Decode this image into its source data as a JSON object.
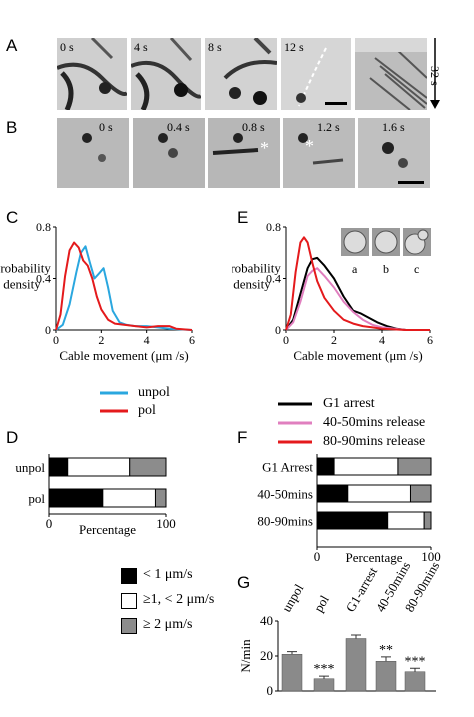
{
  "panels": {
    "A": "A",
    "B": "B",
    "C": "C",
    "D": "D",
    "E": "E",
    "F": "F",
    "G": "G"
  },
  "row_a": {
    "timestamps": [
      "0 s",
      "4 s",
      "8 s",
      "12 s"
    ],
    "time_axis_label": "32 s"
  },
  "row_b": {
    "timestamps": [
      "0 s",
      "0.4 s",
      "0.8 s",
      "1.2 s",
      "1.6 s"
    ]
  },
  "panel_c": {
    "legend": [
      "unpol",
      "pol"
    ]
  },
  "panel_e": {
    "legend": [
      "G1 arrest",
      "40-50mins release",
      "80-90mins release"
    ],
    "inset_labels": [
      "a",
      "b",
      "c"
    ]
  },
  "panel_d": {
    "ylabel_text": "Percentage"
  },
  "panel_f": {
    "ylabel_text": "Percentage"
  },
  "bin_legend": [
    "< 1 μm/s",
    "≥1, < 2 μm/s",
    "≥ 2 μm/s"
  ],
  "colors": {
    "unpol": "#2aa7df",
    "pol": "#e41a1c",
    "g1": "#000000",
    "r4050": "#e07fbf",
    "r8090": "#e41a1c",
    "black_bin": "#000000",
    "white_bin": "#ffffff",
    "gray_bin": "#8c8c8c"
  },
  "chart_data": [
    {
      "id": "C",
      "type": "line",
      "xlabel": "Cable movement (μm /s)",
      "ylabel": "Probability density",
      "xlim": [
        0,
        6
      ],
      "ylim": [
        0,
        0.8
      ],
      "xticks": [
        0,
        2,
        4,
        6
      ],
      "yticks": [
        0,
        0.4,
        0.8
      ],
      "series": [
        {
          "name": "unpol",
          "x": [
            0,
            0.3,
            0.6,
            0.9,
            1.1,
            1.3,
            1.5,
            1.7,
            1.9,
            2.1,
            2.3,
            2.5,
            2.8,
            3.1,
            3.5,
            4,
            4.5,
            5,
            6
          ],
          "y": [
            0,
            0.04,
            0.2,
            0.45,
            0.6,
            0.65,
            0.52,
            0.4,
            0.44,
            0.48,
            0.33,
            0.15,
            0.06,
            0.04,
            0.03,
            0.03,
            0.02,
            0.01,
            0
          ]
        },
        {
          "name": "pol",
          "x": [
            0,
            0.2,
            0.4,
            0.6,
            0.8,
            1.0,
            1.2,
            1.4,
            1.6,
            1.8,
            2.0,
            2.3,
            2.6,
            3.0,
            3.5,
            4,
            4.5,
            5,
            5.3,
            6
          ],
          "y": [
            0,
            0.12,
            0.42,
            0.62,
            0.68,
            0.64,
            0.54,
            0.5,
            0.4,
            0.26,
            0.16,
            0.08,
            0.05,
            0.04,
            0.03,
            0.02,
            0.03,
            0.03,
            0.01,
            0
          ]
        }
      ]
    },
    {
      "id": "E",
      "type": "line",
      "xlabel": "Cable movement (μm /s)",
      "ylabel": "Probability density",
      "xlim": [
        0,
        6
      ],
      "ylim": [
        0,
        0.8
      ],
      "xticks": [
        0,
        2,
        4,
        6
      ],
      "yticks": [
        0,
        0.4,
        0.8
      ],
      "series": [
        {
          "name": "G1 arrest",
          "x": [
            0,
            0.3,
            0.6,
            0.9,
            1.1,
            1.3,
            1.6,
            2.0,
            2.4,
            2.8,
            3.1,
            3.4,
            3.8,
            4.2,
            4.6,
            5,
            6
          ],
          "y": [
            0,
            0.08,
            0.28,
            0.48,
            0.55,
            0.56,
            0.5,
            0.4,
            0.26,
            0.15,
            0.13,
            0.1,
            0.06,
            0.03,
            0.01,
            0,
            0
          ]
        },
        {
          "name": "40-50mins release",
          "x": [
            0,
            0.3,
            0.6,
            0.9,
            1.1,
            1.3,
            1.6,
            2.0,
            2.4,
            2.8,
            3.2,
            3.6,
            4,
            5,
            6
          ],
          "y": [
            0,
            0.06,
            0.22,
            0.42,
            0.46,
            0.48,
            0.42,
            0.33,
            0.22,
            0.14,
            0.08,
            0.04,
            0.02,
            0,
            0
          ]
        },
        {
          "name": "80-90mins release",
          "x": [
            0,
            0.2,
            0.4,
            0.6,
            0.75,
            0.9,
            1.1,
            1.3,
            1.6,
            2.0,
            2.4,
            2.8,
            3.2,
            3.6,
            4,
            5,
            6
          ],
          "y": [
            0,
            0.12,
            0.45,
            0.68,
            0.72,
            0.68,
            0.52,
            0.38,
            0.25,
            0.15,
            0.08,
            0.05,
            0.03,
            0.02,
            0.01,
            0,
            0
          ]
        }
      ]
    },
    {
      "id": "D",
      "type": "bar",
      "orientation": "stacked-horizontal",
      "xlabel": "Percentage",
      "xlim": [
        0,
        100
      ],
      "xticks": [
        0,
        100
      ],
      "categories": [
        "unpol",
        "pol"
      ],
      "series": [
        {
          "name": "< 1 μm/s",
          "values": [
            16,
            46
          ]
        },
        {
          "name": "≥1, < 2 μm/s",
          "values": [
            53,
            45
          ]
        },
        {
          "name": "≥ 2 μm/s",
          "values": [
            31,
            9
          ]
        }
      ]
    },
    {
      "id": "F",
      "type": "bar",
      "orientation": "stacked-horizontal",
      "xlabel": "Percentage",
      "xlim": [
        0,
        100
      ],
      "xticks": [
        0,
        100
      ],
      "categories": [
        "G1 Arrest",
        "40-50mins",
        "80-90mins"
      ],
      "series": [
        {
          "name": "< 1 μm/s",
          "values": [
            15,
            27,
            62
          ]
        },
        {
          "name": "≥1, < 2 μm/s",
          "values": [
            56,
            55,
            32
          ]
        },
        {
          "name": "≥ 2 μm/s",
          "values": [
            29,
            18,
            6
          ]
        }
      ]
    },
    {
      "id": "G",
      "type": "bar",
      "ylabel": "N/min",
      "ylim": [
        0,
        40
      ],
      "yticks": [
        0,
        20,
        40
      ],
      "categories": [
        "unpol",
        "pol",
        "G1-arrest",
        "40-50mins",
        "80-90mins"
      ],
      "values": [
        21,
        7,
        30,
        17,
        11
      ],
      "errors": [
        1.5,
        1.5,
        2,
        2.5,
        2
      ],
      "annotations": [
        "",
        "***",
        "",
        "**",
        "***"
      ]
    }
  ]
}
